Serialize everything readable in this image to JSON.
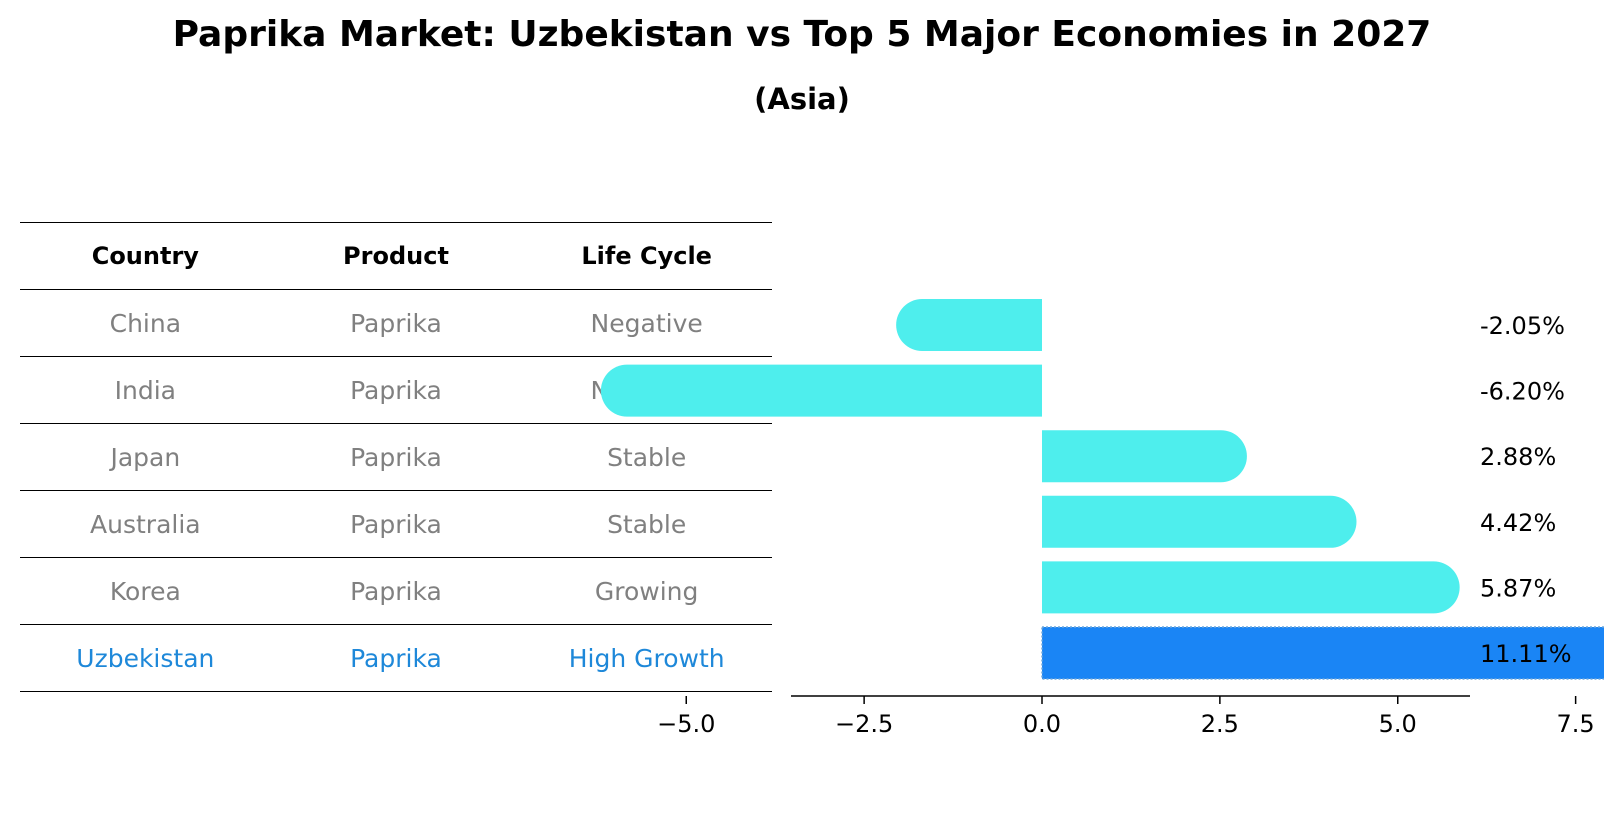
{
  "title": "Paprika Market: Uzbekistan vs Top 5 Major Economies in 2027",
  "subtitle": "(Asia)",
  "table": {
    "headers": [
      "Country",
      "Product",
      "Life Cycle"
    ],
    "rows": [
      [
        "China",
        "Paprika",
        "Negative"
      ],
      [
        "India",
        "Paprika",
        "Negative"
      ],
      [
        "Japan",
        "Paprika",
        "Stable"
      ],
      [
        "Australia",
        "Paprika",
        "Stable"
      ],
      [
        "Korea",
        "Paprika",
        "Growing"
      ],
      [
        "Uzbekistan",
        "Paprika",
        "High Growth"
      ]
    ],
    "highlight_color": "#1e88d9",
    "text_color": "#808080"
  },
  "chart_data": {
    "type": "bar",
    "orientation": "horizontal",
    "categories": [
      "China",
      "India",
      "Japan",
      "Australia",
      "Korea",
      "Uzbekistan"
    ],
    "values": [
      -2.05,
      -6.2,
      2.88,
      4.42,
      5.87,
      11.11
    ],
    "value_labels": [
      "-2.05%",
      "-6.20%",
      "2.88%",
      "4.42%",
      "5.87%",
      "11.11%"
    ],
    "xticks": [
      -5.0,
      -2.5,
      0.0,
      2.5,
      5.0,
      7.5,
      10.0
    ],
    "xtick_labels": [
      "−5.0",
      "−2.5",
      "0.0",
      "2.5",
      "5.0",
      "7.5",
      "10.0"
    ],
    "xlim": [
      -7,
      12
    ],
    "bar_color": "#4eeeed",
    "highlight_color": "#1a85f5",
    "highlight_index": 5,
    "grid": false
  }
}
